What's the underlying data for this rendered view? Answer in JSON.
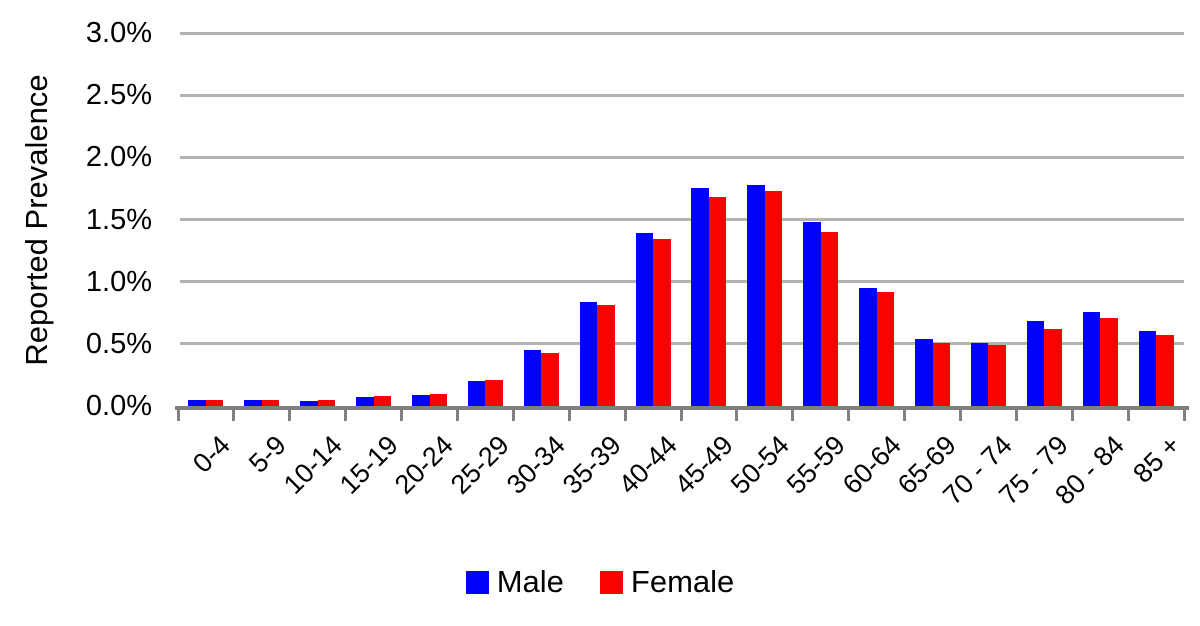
{
  "chart_data": {
    "type": "bar",
    "title": "",
    "xlabel": "",
    "ylabel": "Reported Prevalence",
    "ylim": [
      0,
      3.0
    ],
    "y_tick_step": 0.5,
    "y_tick_labels": [
      "3.0%",
      "2.5%",
      "2.0%",
      "1.5%",
      "1.0%",
      "0.5%",
      "0.0%"
    ],
    "grid": true,
    "legend_position": "bottom-center",
    "categories": [
      "0-4",
      "5-9",
      "10-14",
      "15-19",
      "20-24",
      "25-29",
      "30-34",
      "35-39",
      "40-44",
      "45-49",
      "50-54",
      "55-59",
      "60-64",
      "65-69",
      "70 - 74",
      "75 - 79",
      "80 - 84",
      "85 +"
    ],
    "series": [
      {
        "name": "Male",
        "color": "#0202F8",
        "values": [
          0.05,
          0.05,
          0.04,
          0.07,
          0.09,
          0.2,
          0.45,
          0.84,
          1.39,
          1.75,
          1.78,
          1.48,
          0.95,
          0.54,
          0.51,
          0.68,
          0.76,
          0.6
        ]
      },
      {
        "name": "Female",
        "color": "#F80202",
        "values": [
          0.05,
          0.05,
          0.05,
          0.08,
          0.1,
          0.21,
          0.43,
          0.81,
          1.34,
          1.68,
          1.73,
          1.4,
          0.92,
          0.51,
          0.49,
          0.62,
          0.71,
          0.57
        ]
      }
    ],
    "axis_color": "#808080",
    "grid_color": "#B3B3B3"
  }
}
